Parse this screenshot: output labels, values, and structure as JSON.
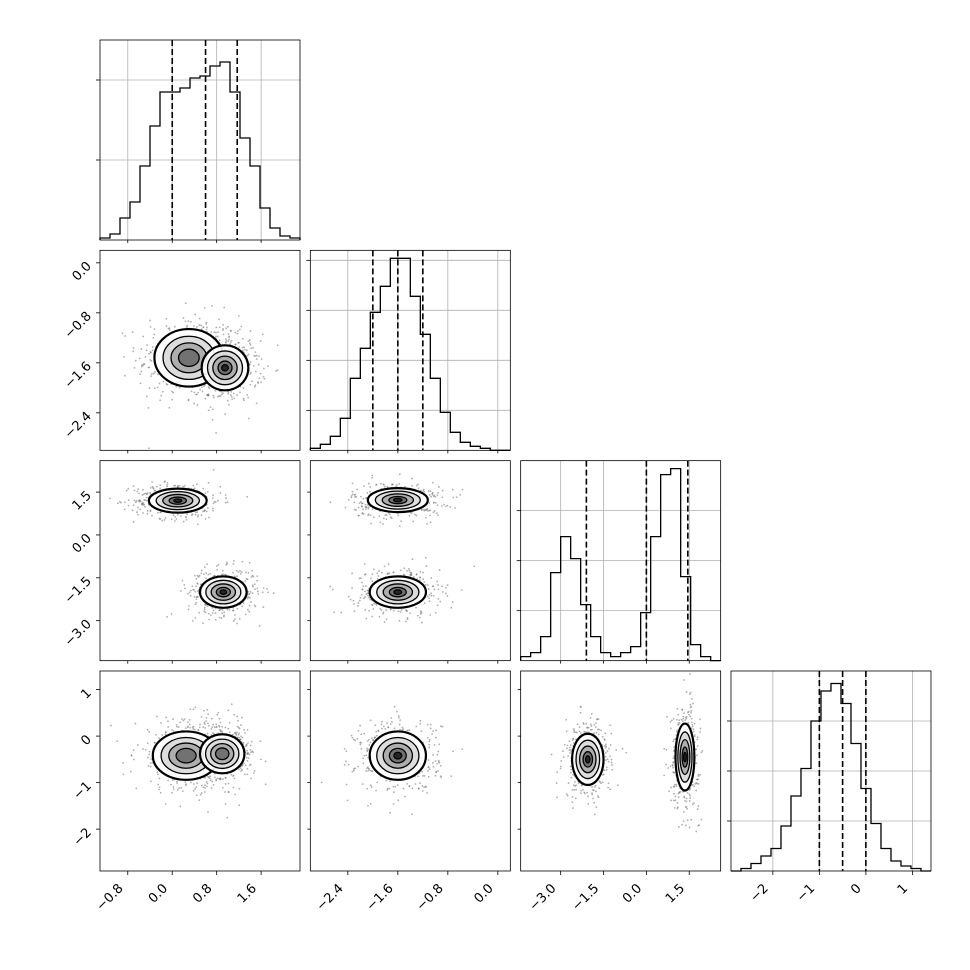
{
  "chart_data": {
    "type": "corner",
    "grid": true,
    "dims": [
      {
        "range": [
          -1.3,
          2.3
        ],
        "ticks": [
          -0.8,
          0.0,
          0.8,
          1.6
        ],
        "tick_labels": [
          "−0.8",
          "0.0",
          "0.8",
          "1.6"
        ],
        "quantiles": [
          0.0,
          0.6,
          1.17
        ],
        "hist": {
          "n_bins": 20,
          "heights": [
            0.01,
            0.03,
            0.11,
            0.19,
            0.37,
            0.57,
            0.74,
            0.74,
            0.76,
            0.81,
            0.82,
            0.87,
            0.89,
            0.74,
            0.51,
            0.37,
            0.16,
            0.06,
            0.02,
            0.01
          ],
          "ylim": [
            0,
            1.0
          ],
          "yticks": [
            0.4,
            0.8
          ]
        }
      },
      {
        "range": [
          -3.0,
          0.2
        ],
        "ticks": [
          -2.4,
          -1.6,
          -0.8,
          0.0
        ],
        "tick_labels": [
          "−2.4",
          "−1.6",
          "−0.8",
          "0.0"
        ],
        "quantiles": [
          -2.0,
          -1.6,
          -1.2
        ],
        "hist": {
          "n_bins": 20,
          "heights": [
            0.01,
            0.03,
            0.07,
            0.16,
            0.36,
            0.51,
            0.69,
            0.82,
            0.96,
            0.96,
            0.77,
            0.58,
            0.36,
            0.19,
            0.09,
            0.04,
            0.02,
            0.01,
            0.0,
            0.0
          ],
          "ylim": [
            0,
            1.0
          ],
          "yticks": [
            0.2,
            0.45,
            0.7,
            0.95
          ]
        }
      },
      {
        "range": [
          -4.4,
          2.6
        ],
        "ticks": [
          -3.0,
          -1.5,
          0.0,
          1.5
        ],
        "tick_labels": [
          "−3.0",
          "−1.5",
          "0.0",
          "1.5"
        ],
        "quantiles": [
          -2.1,
          0.0,
          1.45
        ],
        "hist": {
          "n_bins": 20,
          "heights": [
            0.02,
            0.04,
            0.12,
            0.44,
            0.62,
            0.51,
            0.28,
            0.12,
            0.04,
            0.02,
            0.04,
            0.07,
            0.24,
            0.62,
            0.93,
            0.96,
            0.42,
            0.08,
            0.02,
            0.0
          ],
          "ylim": [
            0,
            1.0
          ],
          "yticks": [
            0.25,
            0.5,
            0.75
          ]
        }
      },
      {
        "range": [
          -2.9,
          1.4
        ],
        "ticks": [
          -2,
          -1,
          0,
          1
        ],
        "tick_labels": [
          "−2",
          "−1",
          "0",
          "1"
        ],
        "quantiles": [
          -1.0,
          -0.5,
          0.0
        ],
        "hist": {
          "n_bins": 20,
          "heights": [
            0.0,
            0.01,
            0.03,
            0.06,
            0.09,
            0.18,
            0.3,
            0.41,
            0.6,
            0.72,
            0.75,
            0.67,
            0.51,
            0.33,
            0.19,
            0.09,
            0.04,
            0.02,
            0.01,
            0.0
          ],
          "ylim": [
            0,
            0.8
          ],
          "yticks": [
            0.2,
            0.4,
            0.6
          ]
        }
      }
    ],
    "density": {
      "1_0": {
        "blobs": [
          [
            0.3,
            -1.52,
            0.62,
            0.46,
            0.75
          ],
          [
            0.95,
            -1.68,
            0.42,
            0.36,
            1.0
          ]
        ]
      },
      "2_0": {
        "blobs": [
          [
            0.1,
            1.2,
            0.52,
            0.42,
            0.95
          ],
          [
            0.92,
            -2.0,
            0.42,
            0.55,
            1.0
          ]
        ]
      },
      "2_1": {
        "blobs": [
          [
            -1.6,
            1.22,
            0.48,
            0.42,
            1.0
          ],
          [
            -1.6,
            -2.0,
            0.45,
            0.55,
            0.97
          ]
        ]
      },
      "3_0": {
        "blobs": [
          [
            0.25,
            -0.42,
            0.6,
            0.52,
            0.85
          ],
          [
            0.9,
            -0.38,
            0.4,
            0.42,
            0.8
          ]
        ]
      },
      "3_1": {
        "blobs": [
          [
            -1.6,
            -0.42,
            0.45,
            0.52,
            1.0
          ]
        ]
      },
      "3_2": {
        "blobs": [
          [
            -2.05,
            -0.5,
            0.55,
            0.55,
            0.95
          ],
          [
            1.35,
            -0.45,
            0.33,
            0.72,
            1.0
          ]
        ]
      }
    }
  }
}
